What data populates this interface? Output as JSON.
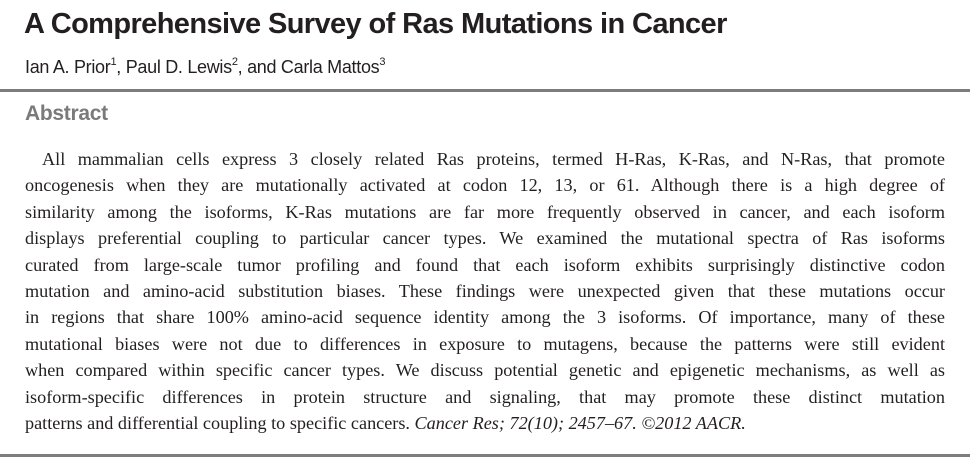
{
  "title": "A Comprehensive Survey of Ras Mutations in Cancer",
  "authors": [
    {
      "name": "Ian A. Prior",
      "affil": "1",
      "sep": ", "
    },
    {
      "name": "Paul D. Lewis",
      "affil": "2",
      "sep": ", and "
    },
    {
      "name": "Carla Mattos",
      "affil": "3",
      "sep": ""
    }
  ],
  "abstract_heading": "Abstract",
  "abstract_lines": [
    "All mammalian cells express 3 closely related Ras proteins, termed H-Ras, K-Ras, and N-Ras, that promote",
    "oncogenesis when they are mutationally activated at codon 12, 13, or 61. Although there is a high degree of",
    "similarity among the isoforms, K-Ras mutations are far more frequently observed in cancer, and each isoform",
    "displays preferential coupling to particular cancer types. We examined the mutational spectra of Ras isoforms",
    "curated from large-scale tumor profiling and found that each isoform exhibits surprisingly distinctive codon",
    "mutation and amino-acid substitution biases. These findings were unexpected given that these mutations occur",
    "in regions that share 100% amino-acid sequence identity among the 3 isoforms. Of importance, many of these",
    "mutational biases were not due to differences in exposure to mutagens, because the patterns were still evident",
    "when compared within specific cancer types. We discuss potential genetic and epigenetic mechanisms, as well as",
    "isoform-specific differences in protein structure and signaling, that may promote these distinct mutation",
    "patterns and differential coupling to specific cancers. "
  ],
  "citation": "Cancer Res; 72(10); 2457–67. ©2012 AACR."
}
